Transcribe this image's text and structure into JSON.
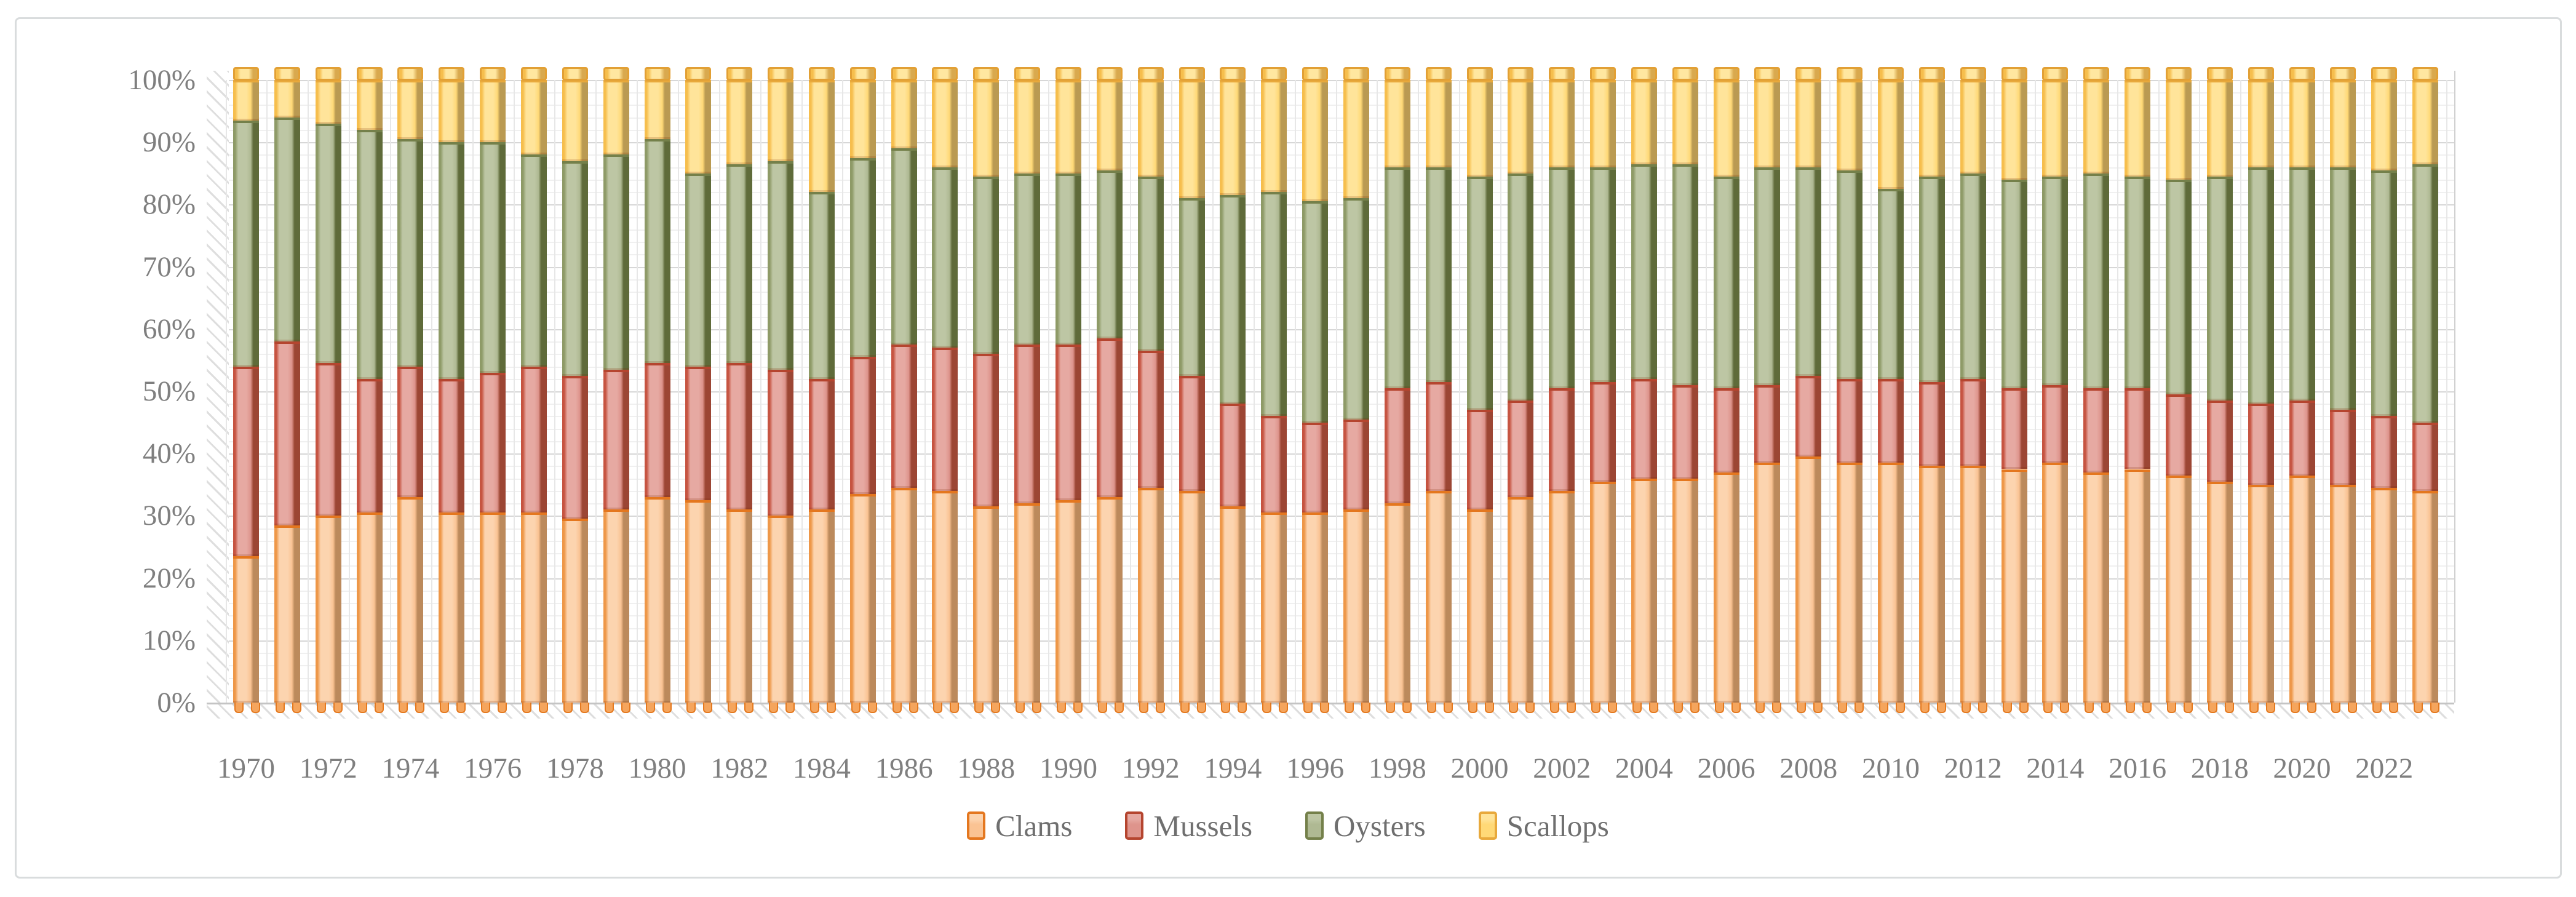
{
  "chart_data": {
    "type": "bar",
    "variant": "100-percent-stacked-3d-column",
    "title": "",
    "xlabel": "",
    "ylabel": "",
    "ylim": [
      0,
      100
    ],
    "grid": {
      "minor_step_pct": 2,
      "major_step_pct": 10,
      "vertical_column_lines": true
    },
    "y_ticks": [
      "0%",
      "10%",
      "20%",
      "30%",
      "40%",
      "50%",
      "60%",
      "70%",
      "80%",
      "90%",
      "100%"
    ],
    "x_tick_labels": [
      "1970",
      "1972",
      "1974",
      "1976",
      "1978",
      "1980",
      "1982",
      "1984",
      "1986",
      "1988",
      "1990",
      "1992",
      "1994",
      "1996",
      "1998",
      "2000",
      "2002",
      "2004",
      "2006",
      "2008",
      "2010",
      "2012",
      "2014",
      "2016",
      "2018",
      "2020",
      "2022"
    ],
    "categories": [
      1970,
      1971,
      1972,
      1973,
      1974,
      1975,
      1976,
      1977,
      1978,
      1979,
      1980,
      1981,
      1982,
      1983,
      1984,
      1985,
      1986,
      1987,
      1988,
      1989,
      1990,
      1991,
      1992,
      1993,
      1994,
      1995,
      1996,
      1997,
      1998,
      1999,
      2000,
      2001,
      2002,
      2003,
      2004,
      2005,
      2006,
      2007,
      2008,
      2009,
      2010,
      2011,
      2012,
      2013,
      2014,
      2015,
      2016,
      2017,
      2018,
      2019,
      2020,
      2021,
      2022,
      2023
    ],
    "series": [
      {
        "name": "Clams",
        "fill": "#FAC393",
        "light": "#FCD4AF",
        "edge": "#EE9748",
        "side": "#BC8A5C",
        "dark": "#E4771F",
        "values": [
          23.5,
          28.5,
          30,
          30.5,
          33,
          30.5,
          30.5,
          30.5,
          29.5,
          31,
          33,
          32.5,
          31,
          30,
          31,
          33.5,
          34.5,
          34,
          31.5,
          32,
          32.5,
          33,
          34.5,
          34,
          31.5,
          30.5,
          30.5,
          31,
          32,
          34,
          31,
          33,
          34,
          35.5,
          36,
          36,
          37,
          38.5,
          39.5,
          38.5,
          38.5,
          38,
          38,
          37.5,
          38.5,
          37,
          37.5,
          36.5,
          35.5,
          35,
          36.5,
          35,
          34.5,
          34
        ]
      },
      {
        "name": "Mussels",
        "fill": "#DE948C",
        "light": "#E6A9A2",
        "edge": "#C65441",
        "side": "#9C4634",
        "dark": "#B5452F",
        "values": [
          30.5,
          29.5,
          24.5,
          21.5,
          21,
          21.5,
          22.5,
          23.5,
          23,
          22.5,
          21.5,
          21.5,
          23.5,
          23.5,
          21,
          22,
          23,
          23,
          24.5,
          25.5,
          25,
          25.5,
          22,
          18.5,
          16.5,
          15.5,
          14.5,
          14.5,
          18.5,
          17.5,
          16,
          15.5,
          16.5,
          16,
          16,
          15,
          13.5,
          12.5,
          13,
          13.5,
          13.5,
          13.5,
          14,
          13,
          12.5,
          13.5,
          13,
          13,
          13,
          13,
          12,
          12,
          11.5,
          11
        ]
      },
      {
        "name": "Oysters",
        "fill": "#AFB993",
        "light": "#BDC6A4",
        "edge": "#8E9A67",
        "side": "#5F6B3A",
        "dark": "#74804A",
        "values": [
          39.5,
          36,
          38.5,
          40,
          36.5,
          38,
          37,
          34,
          34.5,
          34.5,
          36,
          31,
          32,
          33.5,
          30,
          32,
          31.5,
          29,
          28.5,
          27.5,
          27.5,
          27,
          28,
          28.5,
          33.5,
          36,
          35.5,
          35.5,
          35.5,
          34.5,
          37.5,
          36.5,
          35.5,
          34.5,
          34.5,
          35.5,
          34,
          35,
          33.5,
          33.5,
          30.5,
          33,
          33,
          33.5,
          33.5,
          34.5,
          34,
          34.5,
          36,
          38,
          37.5,
          39,
          39.5,
          41.5
        ]
      },
      {
        "name": "Scallops",
        "fill": "#FFD977",
        "light": "#FFE49A",
        "edge": "#F6BE4D",
        "side": "#BA9A52",
        "dark": "#E8A93C",
        "values": [
          6.5,
          6,
          7,
          8,
          9.5,
          10,
          10,
          12,
          13,
          12,
          9.5,
          15,
          13.5,
          13,
          18,
          12.5,
          11,
          14,
          15.5,
          15,
          15,
          14.5,
          15.5,
          19,
          18.5,
          18,
          19.5,
          19,
          14,
          14,
          15.5,
          15,
          14,
          14,
          13.5,
          13.5,
          15.5,
          14,
          14,
          14.5,
          17.5,
          15.5,
          15,
          16,
          15.5,
          15,
          15.5,
          16,
          15.5,
          14,
          14,
          14,
          14.5,
          13.5
        ]
      }
    ],
    "legend": {
      "position": "bottom",
      "labels": [
        "Clams",
        "Mussels",
        "Oysters",
        "Scallops"
      ]
    }
  },
  "axis_text_color": "#7F7F7F",
  "legend_text_color": "#6F6F6F",
  "frame_border_color": "#D9DCDD"
}
